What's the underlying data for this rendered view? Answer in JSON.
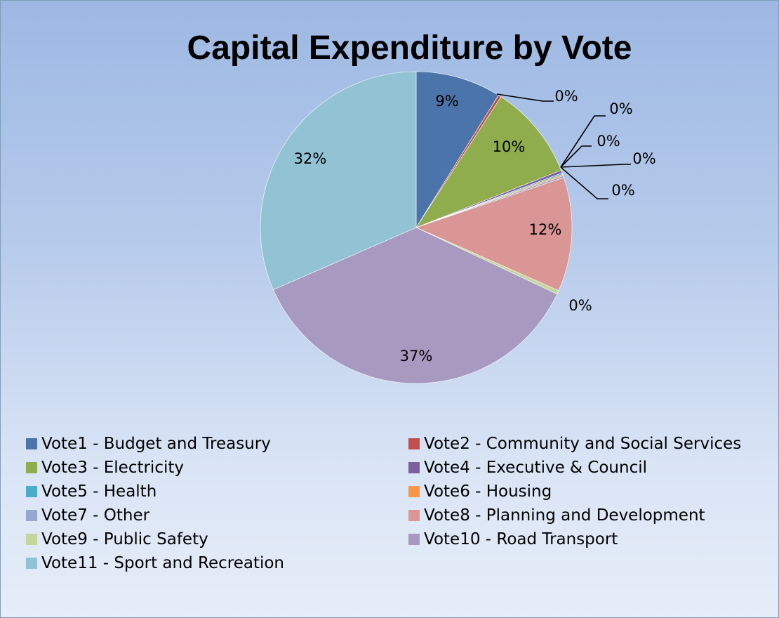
{
  "chart_data": {
    "type": "pie",
    "title": "Capital Expenditure by Vote",
    "legend_position": "bottom",
    "slices": [
      {
        "name": "Vote1 - Budget and Treasury",
        "value": 9,
        "label": "9%",
        "color": "#4a74aa"
      },
      {
        "name": "Vote2 - Community and Social Services",
        "value": 0.3,
        "label": "0%",
        "color": "#c0504d"
      },
      {
        "name": "Vote3 - Electricity",
        "value": 10,
        "label": "10%",
        "color": "#8fad4c"
      },
      {
        "name": "Vote4 - Executive & Council",
        "value": 0.3,
        "label": "0%",
        "color": "#7d5fa0"
      },
      {
        "name": "Vote5 - Health",
        "value": 0.15,
        "label": "0%",
        "color": "#4bacc6"
      },
      {
        "name": "Vote6 - Housing",
        "value": 0.15,
        "label": "0%",
        "color": "#f79646"
      },
      {
        "name": "Vote7 - Other",
        "value": 0.2,
        "label": "0%",
        "color": "#95a8d0"
      },
      {
        "name": "Vote8 - Planning and Development",
        "value": 12,
        "label": "12%",
        "color": "#d99694"
      },
      {
        "name": "Vote9 - Public Safety",
        "value": 0.4,
        "label": "0%",
        "color": "#c3d69b"
      },
      {
        "name": "Vote10 - Road Transport",
        "value": 37,
        "label": "37%",
        "color": "#a899c0"
      },
      {
        "name": "Vote11 - Sport and Recreation",
        "value": 32,
        "label": "32%",
        "color": "#92c3d5"
      }
    ]
  }
}
